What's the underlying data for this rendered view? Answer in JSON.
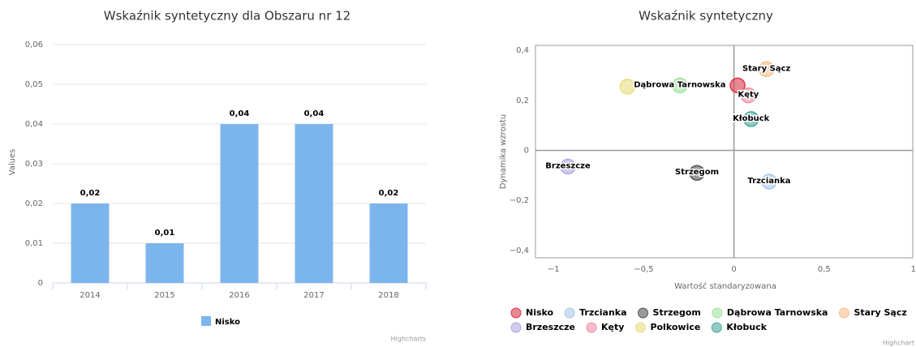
{
  "chart_data": [
    {
      "type": "bar",
      "title": "Wskaźnik syntetyczny dla Obszaru nr 12",
      "y_label": "Values",
      "categories": [
        "2014",
        "2015",
        "2016",
        "2017",
        "2018"
      ],
      "series": [
        {
          "name": "Nisko",
          "color": "#7cb5ec",
          "values": [
            0.02,
            0.01,
            0.04,
            0.04,
            0.02
          ],
          "value_labels": [
            "0,02",
            "0,01",
            "0,04",
            "0,04",
            "0,02"
          ]
        }
      ],
      "ylim": [
        0,
        0.06
      ],
      "yticks": [
        0,
        {
          "value": 0.01,
          "label": "0,01"
        },
        {
          "value": 0.02,
          "label": "0,02"
        },
        {
          "value": 0.03,
          "label": "0,03"
        },
        {
          "value": 0.04,
          "label": "0,04"
        },
        {
          "value": 0.05,
          "label": "0,05"
        },
        {
          "value": 0.06,
          "label": "0,06"
        }
      ],
      "grid": true,
      "credits": "Highcharts"
    },
    {
      "type": "scatter",
      "title": "Wskaźnik syntetyczny",
      "x_label": "Wartość standaryzowana",
      "y_label": "Dynamika wzrostu",
      "series": [
        {
          "name": "Nisko",
          "color": "#d9394a",
          "x": [
            0.02
          ],
          "values": [
            0.26
          ],
          "show_label": false
        },
        {
          "name": "Trzcianka",
          "color": "#aac8ea",
          "x": [
            0.195
          ],
          "values": [
            -0.125
          ]
        },
        {
          "name": "Strzegom",
          "color": "#555555",
          "x": [
            -0.205
          ],
          "values": [
            -0.09
          ]
        },
        {
          "name": "Dąbrowa Tarnowska",
          "color": "#9fe59f",
          "x": [
            -0.3
          ],
          "values": [
            0.26
          ]
        },
        {
          "name": "Stary Sącz",
          "color": "#f5c08a",
          "x": [
            0.18
          ],
          "values": [
            0.325
          ]
        },
        {
          "name": "Brzeszcze",
          "color": "#b3a8e0",
          "x": [
            -0.92
          ],
          "values": [
            -0.065
          ]
        },
        {
          "name": "Kęty",
          "color": "#f08ea6",
          "x": [
            0.08
          ],
          "values": [
            0.22
          ]
        },
        {
          "name": "Polkowice",
          "color": "#e8de80",
          "x": [
            -0.59
          ],
          "values": [
            0.255
          ],
          "show_label": false
        },
        {
          "name": "Kłobuck",
          "color": "#4aa99e",
          "x": [
            0.095
          ],
          "values": [
            0.125
          ]
        }
      ],
      "xlim": [
        -1.1,
        1.0
      ],
      "ylim": [
        -0.43,
        0.42
      ],
      "xticks": [
        {
          "value": -1,
          "label": "−1"
        },
        {
          "value": -0.5,
          "label": "−0,5"
        },
        0,
        {
          "value": 0.5,
          "label": "0,5"
        },
        1
      ],
      "yticks": [
        {
          "value": -0.4,
          "label": "−0,4"
        },
        {
          "value": -0.2,
          "label": "−0,2"
        },
        0,
        {
          "value": 0.2,
          "label": "0,2"
        },
        {
          "value": 0.4,
          "label": "0,4"
        }
      ],
      "credits": "Highchart"
    }
  ]
}
